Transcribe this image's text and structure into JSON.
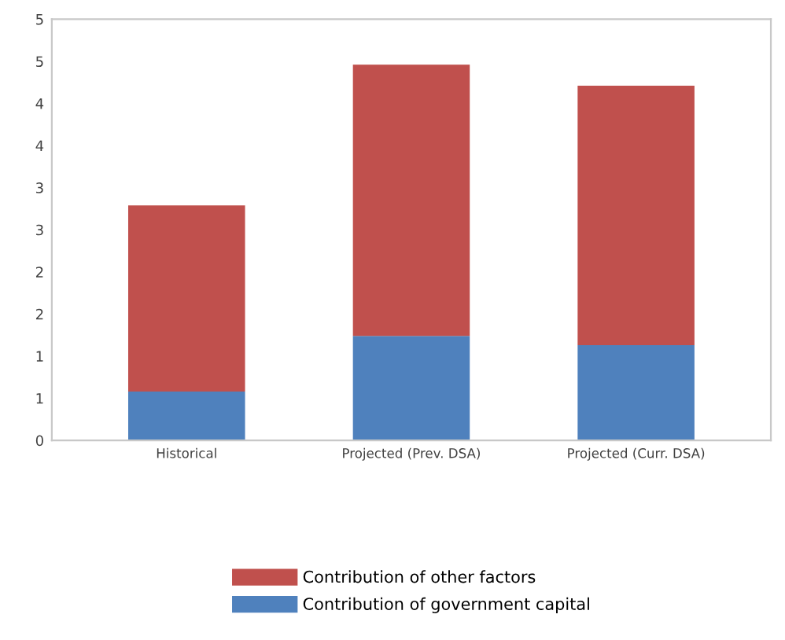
{
  "chart_data": {
    "type": "bar",
    "stacked": true,
    "categories": [
      "Historical",
      "Projected (Prev. DSA)",
      "Projected (Curr. DSA)"
    ],
    "series": [
      {
        "name": "Contribution of government capital",
        "color": "#4f81bd",
        "values": [
          0.58,
          1.24,
          1.13
        ]
      },
      {
        "name": "Contribution of other factors",
        "color": "#c0504d",
        "values": [
          2.21,
          3.22,
          3.08
        ]
      }
    ],
    "ylim": [
      0,
      5
    ],
    "yticks": [
      0,
      {
        "value": 0.5,
        "label": "1"
      },
      1,
      {
        "value": 1.5,
        "label": "2"
      },
      2,
      {
        "value": 2.5,
        "label": "3"
      },
      3,
      {
        "value": 3.5,
        "label": "4"
      },
      4,
      {
        "value": 4.5,
        "label": "5"
      },
      5
    ],
    "grid": false,
    "legend": "bottom"
  }
}
